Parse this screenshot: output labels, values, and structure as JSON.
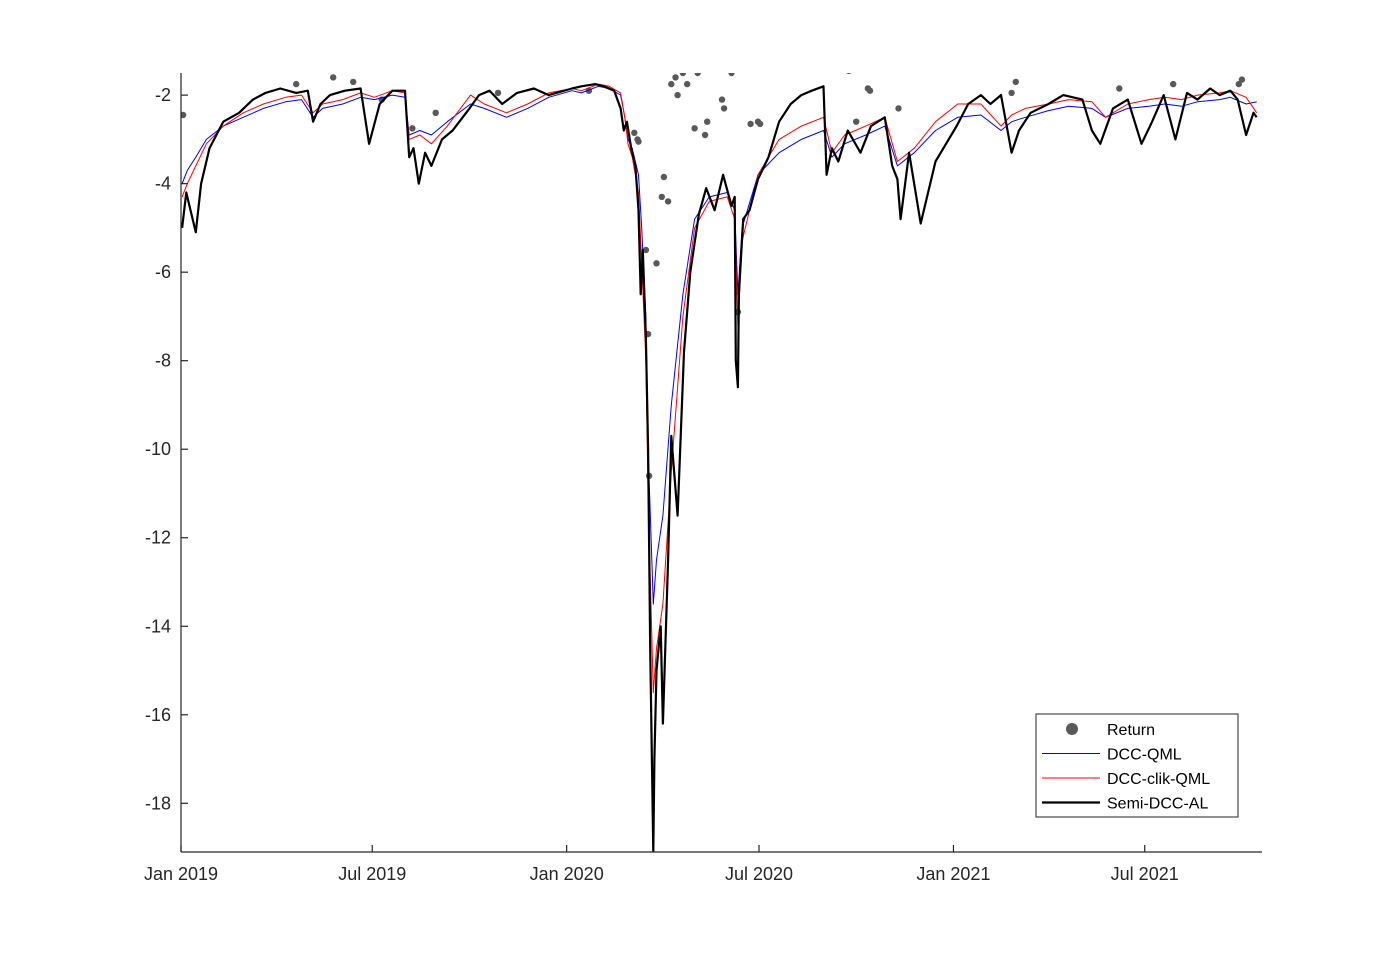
{
  "chart_data": {
    "type": "line",
    "title": "",
    "xlabel": "",
    "ylabel": "",
    "x_range": [
      "2019-01-01",
      "2021-10-20"
    ],
    "ylim": [
      -19.1,
      -1.5
    ],
    "grid": false,
    "legend_position": "bottom-right",
    "x_ticks": [
      {
        "date": "2019-01-01",
        "label": "Jan 2019"
      },
      {
        "date": "2019-07-01",
        "label": "Jul 2019"
      },
      {
        "date": "2020-01-01",
        "label": "Jan 2020"
      },
      {
        "date": "2020-07-01",
        "label": "Jul 2020"
      },
      {
        "date": "2021-01-01",
        "label": "Jan 2021"
      },
      {
        "date": "2021-07-01",
        "label": "Jul 2021"
      }
    ],
    "y_ticks": [
      {
        "value": -2,
        "label": "-2"
      },
      {
        "value": -4,
        "label": "-4"
      },
      {
        "value": -6,
        "label": "-6"
      },
      {
        "value": -8,
        "label": "-8"
      },
      {
        "value": -10,
        "label": "-10"
      },
      {
        "value": -12,
        "label": "-12"
      },
      {
        "value": -14,
        "label": "-14"
      },
      {
        "value": -16,
        "label": "-16"
      },
      {
        "value": -18,
        "label": "-18"
      }
    ],
    "series": [
      {
        "name": "DCC-QML",
        "kind": "line",
        "color": "#0000ff",
        "stroke_width": 1,
        "x": [
          "2019-01-02",
          "2019-01-07",
          "2019-01-15",
          "2019-01-25",
          "2019-02-10",
          "2019-03-01",
          "2019-03-20",
          "2019-04-10",
          "2019-04-25",
          "2019-05-06",
          "2019-05-15",
          "2019-06-03",
          "2019-06-20",
          "2019-07-03",
          "2019-07-20",
          "2019-08-01",
          "2019-08-05",
          "2019-08-15",
          "2019-08-26",
          "2019-09-10",
          "2019-10-02",
          "2019-10-15",
          "2019-11-05",
          "2019-11-25",
          "2019-12-15",
          "2020-01-06",
          "2020-01-15",
          "2020-01-31",
          "2020-02-10",
          "2020-02-21",
          "2020-02-25",
          "2020-02-28",
          "2020-03-03",
          "2020-03-09",
          "2020-03-12",
          "2020-03-16",
          "2020-03-18",
          "2020-03-23",
          "2020-03-26",
          "2020-04-01",
          "2020-04-09",
          "2020-04-20",
          "2020-05-01",
          "2020-05-15",
          "2020-06-01",
          "2020-06-08",
          "2020-06-11",
          "2020-06-15",
          "2020-06-30",
          "2020-07-20",
          "2020-08-10",
          "2020-08-31",
          "2020-09-08",
          "2020-09-20",
          "2020-10-10",
          "2020-10-28",
          "2020-11-09",
          "2020-11-25",
          "2020-12-15",
          "2021-01-05",
          "2021-01-27",
          "2021-02-15",
          "2021-02-25",
          "2021-03-10",
          "2021-04-01",
          "2021-04-20",
          "2021-05-12",
          "2021-05-25",
          "2021-06-15",
          "2021-07-05",
          "2021-07-20",
          "2021-08-05",
          "2021-08-20",
          "2021-09-10",
          "2021-09-20",
          "2021-10-05",
          "2021-10-15"
        ],
        "y": [
          -4.0,
          -3.7,
          -3.4,
          -3.0,
          -2.7,
          -2.5,
          -2.3,
          -2.15,
          -2.1,
          -2.5,
          -2.3,
          -2.2,
          -2.05,
          -2.1,
          -2.0,
          -2.05,
          -2.9,
          -2.8,
          -2.9,
          -2.6,
          -2.2,
          -2.3,
          -2.5,
          -2.3,
          -2.05,
          -1.9,
          -1.95,
          -1.8,
          -1.85,
          -2.0,
          -2.5,
          -3.0,
          -3.2,
          -3.8,
          -5.0,
          -7.0,
          -10.0,
          -13.5,
          -12.5,
          -11.5,
          -9.0,
          -6.5,
          -4.8,
          -4.3,
          -4.2,
          -4.6,
          -6.5,
          -5.0,
          -3.8,
          -3.3,
          -3.0,
          -2.8,
          -3.4,
          -3.1,
          -2.9,
          -2.7,
          -3.6,
          -3.3,
          -2.8,
          -2.5,
          -2.45,
          -2.8,
          -2.6,
          -2.5,
          -2.35,
          -2.25,
          -2.3,
          -2.5,
          -2.3,
          -2.25,
          -2.2,
          -2.25,
          -2.15,
          -2.1,
          -2.05,
          -2.2,
          -2.15
        ]
      },
      {
        "name": "DCC-clik-QML",
        "kind": "line",
        "color": "#ff0000",
        "stroke_width": 1,
        "x": [
          "2019-01-02",
          "2019-01-07",
          "2019-01-15",
          "2019-01-25",
          "2019-02-10",
          "2019-03-01",
          "2019-03-20",
          "2019-04-10",
          "2019-04-25",
          "2019-05-06",
          "2019-05-15",
          "2019-06-03",
          "2019-06-20",
          "2019-07-03",
          "2019-07-20",
          "2019-08-01",
          "2019-08-05",
          "2019-08-15",
          "2019-08-26",
          "2019-09-10",
          "2019-10-02",
          "2019-10-15",
          "2019-11-05",
          "2019-11-25",
          "2019-12-15",
          "2020-01-06",
          "2020-01-15",
          "2020-01-31",
          "2020-02-10",
          "2020-02-21",
          "2020-02-25",
          "2020-02-28",
          "2020-03-03",
          "2020-03-09",
          "2020-03-12",
          "2020-03-16",
          "2020-03-18",
          "2020-03-23",
          "2020-03-26",
          "2020-04-01",
          "2020-04-09",
          "2020-04-20",
          "2020-05-01",
          "2020-05-15",
          "2020-06-01",
          "2020-06-08",
          "2020-06-11",
          "2020-06-15",
          "2020-06-30",
          "2020-07-20",
          "2020-08-10",
          "2020-08-31",
          "2020-09-08",
          "2020-09-20",
          "2020-10-10",
          "2020-10-28",
          "2020-11-09",
          "2020-11-25",
          "2020-12-15",
          "2021-01-05",
          "2021-01-27",
          "2021-02-15",
          "2021-02-25",
          "2021-03-10",
          "2021-04-01",
          "2021-04-20",
          "2021-05-12",
          "2021-05-25",
          "2021-06-15",
          "2021-07-05",
          "2021-07-20",
          "2021-08-05",
          "2021-08-20",
          "2021-09-10",
          "2021-09-20",
          "2021-10-05",
          "2021-10-15"
        ],
        "y": [
          -4.3,
          -4.0,
          -3.6,
          -3.1,
          -2.7,
          -2.4,
          -2.2,
          -2.05,
          -2.0,
          -2.4,
          -2.2,
          -2.1,
          -1.95,
          -2.05,
          -1.9,
          -1.95,
          -3.0,
          -2.9,
          -3.1,
          -2.7,
          -2.0,
          -2.2,
          -2.4,
          -2.2,
          -1.95,
          -1.85,
          -1.9,
          -1.75,
          -1.8,
          -1.95,
          -2.5,
          -3.1,
          -3.4,
          -4.2,
          -5.8,
          -8.0,
          -11.0,
          -15.5,
          -14.5,
          -13.5,
          -10.5,
          -7.0,
          -5.0,
          -4.4,
          -4.3,
          -4.8,
          -7.2,
          -5.3,
          -3.8,
          -3.0,
          -2.7,
          -2.5,
          -3.3,
          -2.9,
          -2.7,
          -2.5,
          -3.5,
          -3.2,
          -2.6,
          -2.2,
          -2.2,
          -2.7,
          -2.45,
          -2.3,
          -2.2,
          -2.1,
          -2.15,
          -2.5,
          -2.2,
          -2.1,
          -2.05,
          -2.1,
          -2.0,
          -1.95,
          -1.9,
          -2.05,
          -2.4
        ]
      },
      {
        "name": "Semi-DCC-AL",
        "kind": "line",
        "color": "#000000",
        "stroke_width": 2.2,
        "x": [
          "2019-01-02",
          "2019-01-06",
          "2019-01-10",
          "2019-01-15",
          "2019-01-20",
          "2019-01-28",
          "2019-02-10",
          "2019-02-25",
          "2019-03-10",
          "2019-03-22",
          "2019-04-05",
          "2019-04-20",
          "2019-05-01",
          "2019-05-06",
          "2019-05-13",
          "2019-05-22",
          "2019-06-05",
          "2019-06-20",
          "2019-06-28",
          "2019-07-08",
          "2019-07-20",
          "2019-08-01",
          "2019-08-05",
          "2019-08-09",
          "2019-08-14",
          "2019-08-20",
          "2019-08-26",
          "2019-09-05",
          "2019-09-15",
          "2019-10-01",
          "2019-10-10",
          "2019-10-20",
          "2019-11-01",
          "2019-11-15",
          "2019-12-01",
          "2019-12-15",
          "2020-01-06",
          "2020-01-15",
          "2020-01-28",
          "2020-02-05",
          "2020-02-15",
          "2020-02-21",
          "2020-02-24",
          "2020-02-27",
          "2020-03-02",
          "2020-03-06",
          "2020-03-09",
          "2020-03-11",
          "2020-03-13",
          "2020-03-16",
          "2020-03-18",
          "2020-03-20",
          "2020-03-23",
          "2020-03-24",
          "2020-03-26",
          "2020-03-30",
          "2020-04-01",
          "2020-04-06",
          "2020-04-09",
          "2020-04-15",
          "2020-04-21",
          "2020-04-27",
          "2020-05-05",
          "2020-05-12",
          "2020-05-20",
          "2020-05-28",
          "2020-06-05",
          "2020-06-08",
          "2020-06-09",
          "2020-06-11",
          "2020-06-12",
          "2020-06-16",
          "2020-06-22",
          "2020-06-30",
          "2020-07-10",
          "2020-07-20",
          "2020-07-31",
          "2020-08-10",
          "2020-08-20",
          "2020-08-31",
          "2020-09-03",
          "2020-09-08",
          "2020-09-14",
          "2020-09-23",
          "2020-10-05",
          "2020-10-15",
          "2020-10-28",
          "2020-11-04",
          "2020-11-09",
          "2020-11-12",
          "2020-11-20",
          "2020-12-01",
          "2020-12-15",
          "2021-01-04",
          "2021-01-15",
          "2021-01-27",
          "2021-02-05",
          "2021-02-15",
          "2021-02-25",
          "2021-03-04",
          "2021-03-15",
          "2021-04-01",
          "2021-04-15",
          "2021-05-03",
          "2021-05-12",
          "2021-05-20",
          "2021-06-01",
          "2021-06-15",
          "2021-06-28",
          "2021-07-08",
          "2021-07-19",
          "2021-07-30",
          "2021-08-10",
          "2021-08-20",
          "2021-09-01",
          "2021-09-10",
          "2021-09-20",
          "2021-09-27",
          "2021-10-05",
          "2021-10-12",
          "2021-10-15"
        ],
        "y": [
          -5.0,
          -4.2,
          -4.6,
          -5.1,
          -4.0,
          -3.2,
          -2.6,
          -2.4,
          -2.1,
          -1.95,
          -1.85,
          -1.95,
          -1.9,
          -2.6,
          -2.2,
          -2.0,
          -1.9,
          -1.85,
          -3.1,
          -2.2,
          -1.9,
          -1.9,
          -3.4,
          -3.2,
          -4.0,
          -3.3,
          -3.6,
          -3.0,
          -2.8,
          -2.3,
          -2.0,
          -1.9,
          -2.2,
          -1.95,
          -1.85,
          -2.0,
          -1.85,
          -1.8,
          -1.75,
          -1.8,
          -1.9,
          -2.3,
          -2.8,
          -2.6,
          -3.2,
          -3.6,
          -4.6,
          -6.5,
          -5.5,
          -7.5,
          -10.0,
          -14.5,
          -19.1,
          -17.0,
          -15.0,
          -14.0,
          -16.2,
          -12.5,
          -9.7,
          -11.5,
          -7.8,
          -6.0,
          -4.7,
          -4.1,
          -4.6,
          -3.8,
          -4.5,
          -4.3,
          -8.0,
          -8.6,
          -6.5,
          -4.8,
          -4.6,
          -3.9,
          -3.4,
          -2.6,
          -2.2,
          -2.0,
          -1.9,
          -1.8,
          -3.8,
          -3.2,
          -3.5,
          -2.8,
          -3.3,
          -2.7,
          -2.5,
          -3.6,
          -3.9,
          -4.8,
          -3.3,
          -4.9,
          -3.5,
          -2.7,
          -2.2,
          -2.0,
          -2.2,
          -2.0,
          -3.3,
          -2.8,
          -2.4,
          -2.2,
          -2.0,
          -2.1,
          -2.8,
          -3.1,
          -2.3,
          -2.1,
          -3.1,
          -2.6,
          -2.0,
          -3.0,
          -1.95,
          -2.1,
          -1.85,
          -2.0,
          -1.9,
          -2.1,
          -2.9,
          -2.4,
          -2.5
        ]
      },
      {
        "name": "Return",
        "kind": "scatter",
        "color": "#595959",
        "x": [
          "2019-01-03",
          "2019-04-20",
          "2019-05-25",
          "2019-06-13",
          "2019-07-10",
          "2019-08-08",
          "2019-08-30",
          "2019-10-30",
          "2019-11-03",
          "2019-11-08",
          "2019-10-28",
          "2020-01-18",
          "2020-01-22",
          "2020-03-05",
          "2020-03-08",
          "2020-03-09",
          "2020-03-16",
          "2020-03-18",
          "2020-03-19",
          "2020-03-26",
          "2020-03-31",
          "2020-04-02",
          "2020-04-06",
          "2020-04-09",
          "2020-04-15",
          "2020-04-13",
          "2020-04-20",
          "2020-04-24",
          "2020-05-01",
          "2020-05-04",
          "2020-05-11",
          "2020-05-13",
          "2020-05-27",
          "2020-05-29",
          "2020-06-05",
          "2020-06-11",
          "2020-06-18",
          "2020-06-23",
          "2020-06-30",
          "2020-07-02",
          "2020-09-20",
          "2020-09-24",
          "2020-10-01",
          "2020-10-12",
          "2020-10-14",
          "2020-10-27",
          "2020-11-02",
          "2020-11-09",
          "2020-11-10",
          "2020-12-12",
          "2021-02-25",
          "2021-03-01",
          "2021-06-03",
          "2021-06-07",
          "2021-07-28",
          "2021-09-28",
          "2021-10-01",
          "2021-10-15"
        ],
        "y": [
          -2.45,
          -1.75,
          -1.6,
          -1.7,
          -2.1,
          -2.75,
          -2.4,
          -1.32,
          -1.3,
          -1.3,
          -1.95,
          -1.4,
          -1.9,
          -2.85,
          -3.0,
          -3.05,
          -5.5,
          -7.4,
          -10.6,
          -5.8,
          -4.3,
          -3.85,
          -4.4,
          -1.75,
          -2.0,
          -1.6,
          -1.5,
          -1.75,
          -2.75,
          -1.5,
          -2.9,
          -2.6,
          -2.1,
          -2.3,
          -1.5,
          -6.9,
          -1.35,
          -2.65,
          -2.6,
          -2.65,
          -1.4,
          -1.45,
          -2.6,
          -1.85,
          -1.9,
          -1.4,
          -1.3,
          -1.33,
          -2.3,
          -1.27,
          -1.95,
          -1.7,
          -1.35,
          -1.85,
          -1.75,
          -1.75,
          -1.65,
          -1.42
        ]
      }
    ]
  }
}
